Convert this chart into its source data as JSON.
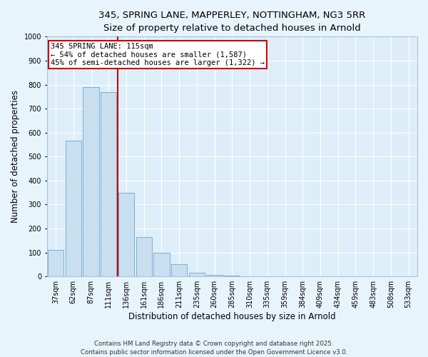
{
  "title_line1": "345, SPRING LANE, MAPPERLEY, NOTTINGHAM, NG3 5RR",
  "title_line2": "Size of property relative to detached houses in Arnold",
  "xlabel": "Distribution of detached houses by size in Arnold",
  "ylabel": "Number of detached properties",
  "categories": [
    "37sqm",
    "62sqm",
    "87sqm",
    "111sqm",
    "136sqm",
    "161sqm",
    "186sqm",
    "211sqm",
    "235sqm",
    "260sqm",
    "285sqm",
    "310sqm",
    "335sqm",
    "359sqm",
    "384sqm",
    "409sqm",
    "434sqm",
    "459sqm",
    "483sqm",
    "508sqm",
    "533sqm"
  ],
  "values": [
    110,
    565,
    790,
    770,
    350,
    165,
    100,
    50,
    15,
    8,
    4,
    2,
    1,
    1,
    1,
    0,
    0,
    0,
    0,
    0,
    0
  ],
  "bar_color": "#c9dff0",
  "bar_edge_color": "#7bafd4",
  "vline_color": "#cc0000",
  "annotation_text": "345 SPRING LANE: 115sqm\n← 54% of detached houses are smaller (1,587)\n45% of semi-detached houses are larger (1,322) →",
  "annotation_box_color": "#ffffff",
  "annotation_box_edge": "#cc0000",
  "ylim": [
    0,
    1000
  ],
  "yticks": [
    0,
    100,
    200,
    300,
    400,
    500,
    600,
    700,
    800,
    900,
    1000
  ],
  "bg_color": "#ddeef9",
  "grid_color": "#ffffff",
  "fig_bg_color": "#e8f4fc",
  "footer_line1": "Contains HM Land Registry data © Crown copyright and database right 2025.",
  "footer_line2": "Contains public sector information licensed under the Open Government Licence v3.0.",
  "title_fontsize": 9.5,
  "axis_label_fontsize": 8.5,
  "tick_fontsize": 7,
  "annotation_fontsize": 7.5,
  "ylabel_full": "Number of detached properties"
}
